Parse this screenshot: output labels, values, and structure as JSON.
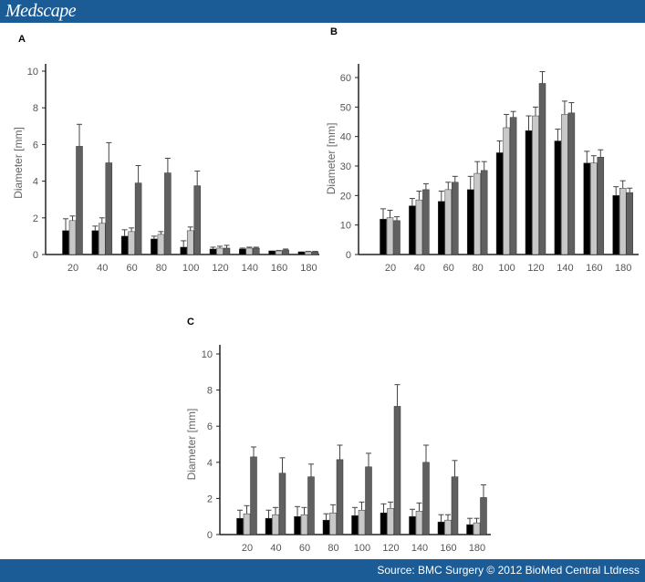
{
  "header": {
    "logo": "Medscape"
  },
  "footer": {
    "source": "Source: BMC Surgery © 2012 BioMed Central Ltdress"
  },
  "colors": {
    "brand": "#1b5c96",
    "series": [
      "#000000",
      "#c8c8c8",
      "#606060"
    ]
  },
  "chart_data": [
    {
      "type": "bar",
      "panel": "A",
      "ylabel": "Diameter [mm]",
      "xlabel": "",
      "categories": [
        "20",
        "40",
        "60",
        "80",
        "100",
        "120",
        "140",
        "160",
        "180"
      ],
      "ylim": [
        0,
        10
      ],
      "yticks": [
        0,
        2,
        4,
        6,
        8,
        10
      ],
      "grid": false,
      "series": [
        {
          "values": [
            1.3,
            1.3,
            1.0,
            0.85,
            0.4,
            0.3,
            0.3,
            0.2,
            0.15
          ],
          "errors": [
            0.65,
            0.25,
            0.35,
            0.15,
            0.35,
            0.1,
            0.05,
            0,
            0
          ]
        },
        {
          "values": [
            1.85,
            1.7,
            1.25,
            1.1,
            1.3,
            0.35,
            0.35,
            0.2,
            0.15
          ],
          "errors": [
            0.25,
            0.3,
            0.2,
            0.15,
            0.2,
            0.1,
            0.05,
            0.02,
            0.02
          ]
        },
        {
          "values": [
            5.9,
            5.0,
            3.9,
            4.45,
            3.75,
            0.35,
            0.35,
            0.25,
            0.15
          ],
          "errors": [
            1.2,
            1.1,
            0.95,
            0.8,
            0.8,
            0.15,
            0.05,
            0.05,
            0.02
          ]
        }
      ]
    },
    {
      "type": "bar",
      "panel": "B",
      "ylabel": "Diameter [mm]",
      "xlabel": "",
      "categories": [
        "20",
        "40",
        "60",
        "80",
        "100",
        "120",
        "140",
        "160",
        "180"
      ],
      "ylim": [
        0,
        65
      ],
      "yticks": [
        0,
        10,
        20,
        30,
        40,
        50,
        60
      ],
      "grid": false,
      "series": [
        {
          "values": [
            12,
            16.5,
            18,
            22,
            34.5,
            42,
            38.5,
            31,
            20
          ],
          "errors": [
            3.5,
            2.5,
            3.5,
            4.5,
            4,
            5,
            4,
            4,
            3
          ]
        },
        {
          "values": [
            12.5,
            18.5,
            22,
            27.5,
            43,
            47,
            47.5,
            31,
            22.5
          ],
          "errors": [
            2.5,
            3,
            2.5,
            4,
            4.5,
            3,
            4.5,
            2.5,
            2.5
          ]
        },
        {
          "values": [
            11.5,
            22,
            24.5,
            28.5,
            46.5,
            58,
            48,
            33,
            21
          ],
          "errors": [
            1.3,
            2,
            2,
            3,
            2,
            4,
            3.5,
            2.5,
            1.5
          ]
        }
      ]
    },
    {
      "type": "bar",
      "panel": "C",
      "ylabel": "Diameter [mm]",
      "xlabel": "",
      "categories": [
        "20",
        "40",
        "60",
        "80",
        "100",
        "120",
        "140",
        "160",
        "180"
      ],
      "ylim": [
        0,
        10
      ],
      "yticks": [
        0,
        2,
        4,
        6,
        8,
        10
      ],
      "grid": false,
      "series": [
        {
          "values": [
            0.9,
            0.9,
            1.0,
            0.8,
            1.05,
            1.2,
            1.0,
            0.7,
            0.55
          ],
          "errors": [
            0.45,
            0.45,
            0.55,
            0.35,
            0.45,
            0.5,
            0.4,
            0.4,
            0.35
          ]
        },
        {
          "values": [
            1.15,
            1.1,
            1.1,
            1.2,
            1.35,
            1.45,
            1.3,
            0.8,
            0.65
          ],
          "errors": [
            0.45,
            0.4,
            0.4,
            0.45,
            0.45,
            0.35,
            0.45,
            0.3,
            0.25
          ]
        },
        {
          "values": [
            4.3,
            3.4,
            3.2,
            4.15,
            3.75,
            7.1,
            4.0,
            3.2,
            2.05
          ],
          "errors": [
            0.55,
            0.85,
            0.7,
            0.8,
            0.75,
            1.2,
            0.95,
            0.9,
            0.7
          ]
        }
      ]
    }
  ]
}
